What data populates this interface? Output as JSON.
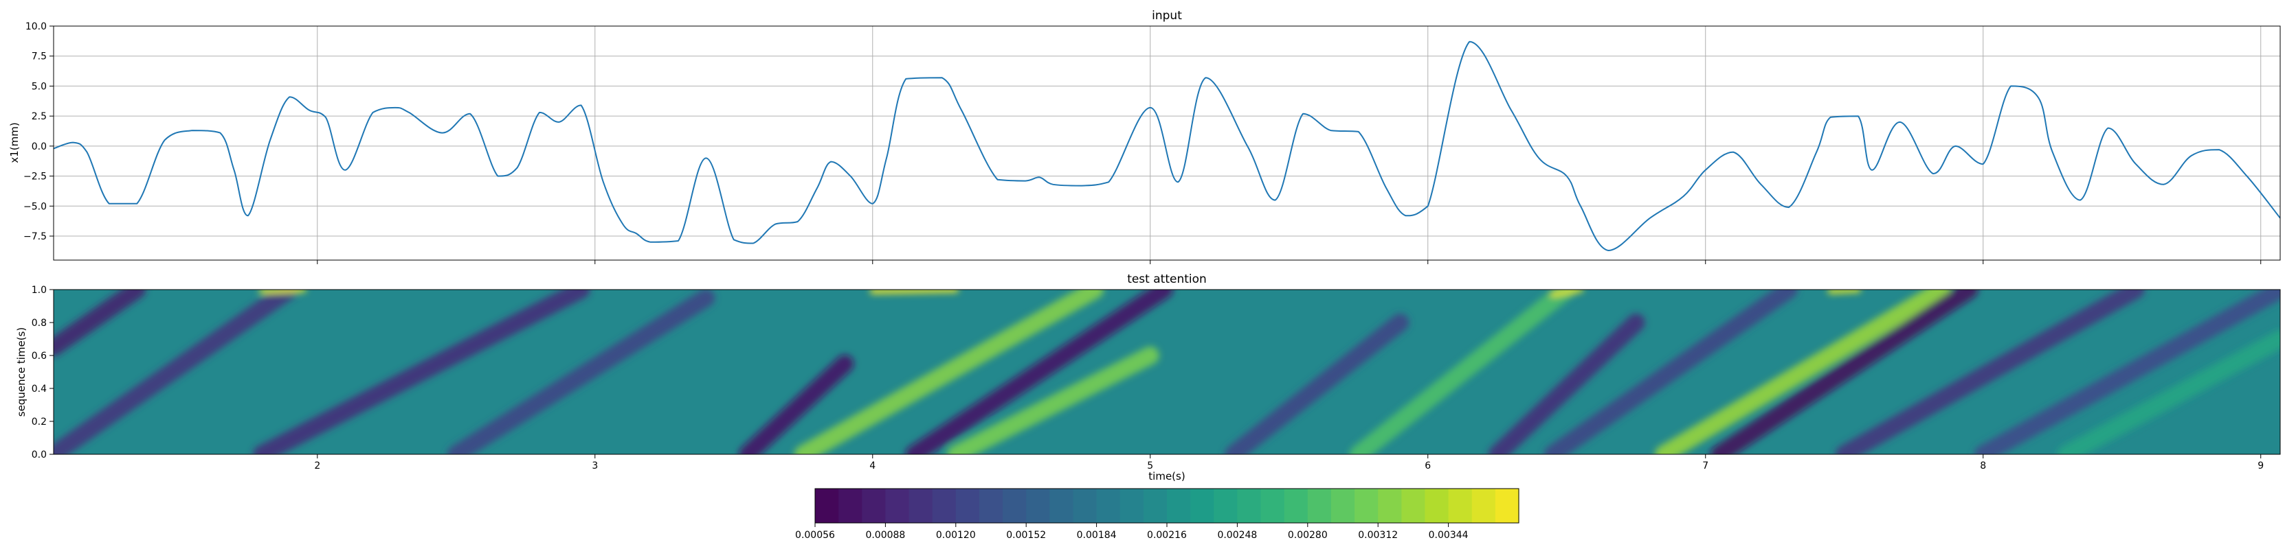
{
  "chart_data": [
    {
      "type": "line",
      "title": "input",
      "xlabel": "",
      "ylabel": "x1(mm)",
      "xlim": [
        1.05,
        9.07
      ],
      "ylim": [
        -9.5,
        10.0
      ],
      "x_ticks": [
        2,
        3,
        4,
        5,
        6,
        7,
        8,
        9
      ],
      "x_tick_labels": [
        "",
        "",
        "",
        "",
        "",
        "",
        "",
        ""
      ],
      "y_ticks": [
        -7.5,
        -5.0,
        -2.5,
        0.0,
        2.5,
        5.0,
        7.5,
        10.0
      ],
      "y_tick_labels": [
        "−7.5",
        "−5.0",
        "−2.5",
        "0.0",
        "2.5",
        "5.0",
        "7.5",
        "10.0"
      ],
      "grid": true,
      "color": "#1f77b4",
      "series": [
        {
          "x": [
            1.05,
            1.12,
            1.17,
            1.25,
            1.35,
            1.45,
            1.55,
            1.65,
            1.7,
            1.75,
            1.83,
            1.9,
            1.97,
            2.03,
            2.1,
            2.2,
            2.28,
            2.33,
            2.45,
            2.55,
            2.65,
            2.72,
            2.8,
            2.87,
            2.95,
            3.03,
            3.1,
            3.15,
            3.2,
            3.3,
            3.4,
            3.5,
            3.57,
            3.65,
            3.73,
            3.8,
            3.85,
            3.92,
            4.0,
            4.05,
            4.12,
            4.25,
            4.32,
            4.45,
            4.55,
            4.6,
            4.65,
            4.75,
            4.85,
            5.0,
            5.1,
            5.2,
            5.35,
            5.45,
            5.55,
            5.65,
            5.75,
            5.85,
            5.92,
            6.0,
            6.15,
            6.3,
            6.4,
            6.5,
            6.55,
            6.65,
            6.8,
            6.92,
            7.0,
            7.1,
            7.2,
            7.3,
            7.4,
            7.45,
            7.55,
            7.6,
            7.7,
            7.82,
            7.9,
            8.0,
            8.1,
            8.2,
            8.25,
            8.35,
            8.45,
            8.55,
            8.65,
            8.75,
            8.85,
            8.95,
            9.07
          ],
          "y": [
            -0.2,
            0.3,
            -0.5,
            -4.8,
            -4.8,
            0.5,
            1.3,
            1.1,
            -2.0,
            -5.8,
            0.5,
            4.1,
            3.0,
            2.4,
            -2.0,
            2.8,
            3.2,
            2.8,
            1.1,
            2.7,
            -2.5,
            -1.8,
            2.8,
            2.0,
            3.4,
            -3.0,
            -6.5,
            -7.3,
            -8.0,
            -7.9,
            -1.0,
            -7.8,
            -8.1,
            -6.5,
            -6.3,
            -3.5,
            -1.3,
            -2.5,
            -4.8,
            -1.0,
            5.6,
            5.7,
            3.0,
            -2.8,
            -2.9,
            -2.6,
            -3.2,
            -3.3,
            -3.0,
            3.2,
            -3.0,
            5.7,
            0.0,
            -4.5,
            2.7,
            1.3,
            1.2,
            -3.5,
            -5.8,
            -5.0,
            8.7,
            3.0,
            -1.0,
            -2.5,
            -5.0,
            -8.7,
            -6.0,
            -4.2,
            -2.0,
            -0.5,
            -3.2,
            -5.1,
            -0.5,
            2.4,
            2.5,
            -2.0,
            2.0,
            -2.3,
            0.0,
            -1.5,
            5.0,
            4.0,
            -0.5,
            -4.5,
            1.5,
            -1.5,
            -3.2,
            -0.8,
            -0.3,
            -2.5,
            -6.0
          ]
        }
      ]
    },
    {
      "type": "heatmap",
      "title": "test attention",
      "xlabel": "time(s)",
      "ylabel": "sequence time(s)",
      "xlim": [
        1.05,
        9.07
      ],
      "ylim": [
        0.0,
        1.0
      ],
      "x_ticks": [
        2,
        3,
        4,
        5,
        6,
        7,
        8,
        9
      ],
      "x_tick_labels": [
        "2",
        "3",
        "4",
        "5",
        "6",
        "7",
        "8",
        "9"
      ],
      "y_ticks": [
        0.0,
        0.2,
        0.4,
        0.6,
        0.8,
        1.0
      ],
      "y_tick_labels": [
        "0.0",
        "0.2",
        "0.4",
        "0.6",
        "0.8",
        "1.0"
      ],
      "colormap": "viridis",
      "colorbar": {
        "vmin": 0.00056,
        "vmax": 0.00376,
        "ticks": [
          0.00056,
          0.00088,
          0.0012,
          0.00152,
          0.00184,
          0.00216,
          0.00248,
          0.0028,
          0.00312,
          0.00344
        ],
        "tick_labels": [
          "0.00056",
          "0.00088",
          "0.00120",
          "0.00152",
          "0.00184",
          "0.00216",
          "0.00248",
          "0.00280",
          "0.00312",
          "0.00344"
        ],
        "orientation": "horizontal",
        "levels": 30
      },
      "features": [
        {
          "kind": "dark diagonal band",
          "x0": 1.05,
          "y0": 0.65,
          "x1": 1.35,
          "y1": 1.0,
          "level": 0.08
        },
        {
          "kind": "dark diagonal band",
          "x0": 1.05,
          "y0": 0.0,
          "x1": 1.9,
          "y1": 1.0,
          "level": 0.15
        },
        {
          "kind": "dark diagonal band",
          "x0": 1.8,
          "y0": 0.0,
          "x1": 2.95,
          "y1": 1.0,
          "level": 0.12
        },
        {
          "kind": "dark diagonal band",
          "x0": 2.5,
          "y0": 0.0,
          "x1": 3.4,
          "y1": 0.95,
          "level": 0.2
        },
        {
          "kind": "dark diagonal band",
          "x0": 3.55,
          "y0": 0.0,
          "x1": 3.9,
          "y1": 0.55,
          "level": 0.05
        },
        {
          "kind": "bright diagonal band",
          "x0": 3.75,
          "y0": 0.0,
          "x1": 4.8,
          "y1": 1.0,
          "level": 0.82
        },
        {
          "kind": "bright diagonal band",
          "x0": 4.3,
          "y0": 0.0,
          "x1": 5.0,
          "y1": 0.6,
          "level": 0.8
        },
        {
          "kind": "dark diagonal band",
          "x0": 4.15,
          "y0": 0.0,
          "x1": 5.05,
          "y1": 1.0,
          "level": 0.05
        },
        {
          "kind": "dark diagonal band",
          "x0": 5.3,
          "y0": 0.0,
          "x1": 5.9,
          "y1": 0.8,
          "level": 0.2
        },
        {
          "kind": "bright diagonal band",
          "x0": 5.75,
          "y0": 0.0,
          "x1": 6.5,
          "y1": 1.0,
          "level": 0.72
        },
        {
          "kind": "dark diagonal band",
          "x0": 6.25,
          "y0": 0.0,
          "x1": 6.75,
          "y1": 0.8,
          "level": 0.12
        },
        {
          "kind": "dark diagonal band",
          "x0": 6.45,
          "y0": 0.0,
          "x1": 7.3,
          "y1": 1.0,
          "level": 0.2
        },
        {
          "kind": "bright diagonal band",
          "x0": 6.85,
          "y0": 0.0,
          "x1": 7.85,
          "y1": 1.0,
          "level": 0.85
        },
        {
          "kind": "dark diagonal band",
          "x0": 7.05,
          "y0": 0.0,
          "x1": 7.95,
          "y1": 1.0,
          "level": 0.02
        },
        {
          "kind": "dark diagonal band",
          "x0": 7.5,
          "y0": 0.0,
          "x1": 8.55,
          "y1": 1.0,
          "level": 0.15
        },
        {
          "kind": "dark diagonal band",
          "x0": 8.0,
          "y0": 0.0,
          "x1": 9.07,
          "y1": 1.0,
          "level": 0.22
        },
        {
          "kind": "bright diagonal band",
          "x0": 8.3,
          "y0": 0.0,
          "x1": 9.07,
          "y1": 0.7,
          "level": 0.6
        },
        {
          "kind": "bright top strip",
          "x0": 4.0,
          "y0": 0.99,
          "x1": 4.3,
          "y1": 1.0,
          "level": 0.98
        },
        {
          "kind": "bright top strip",
          "x0": 1.8,
          "y0": 0.99,
          "x1": 1.95,
          "y1": 1.0,
          "level": 0.95
        },
        {
          "kind": "bright top strip",
          "x0": 6.45,
          "y0": 0.97,
          "x1": 6.55,
          "y1": 1.0,
          "level": 0.95
        },
        {
          "kind": "bright top strip",
          "x0": 7.45,
          "y0": 0.99,
          "x1": 7.55,
          "y1": 1.0,
          "level": 0.95
        }
      ]
    }
  ]
}
